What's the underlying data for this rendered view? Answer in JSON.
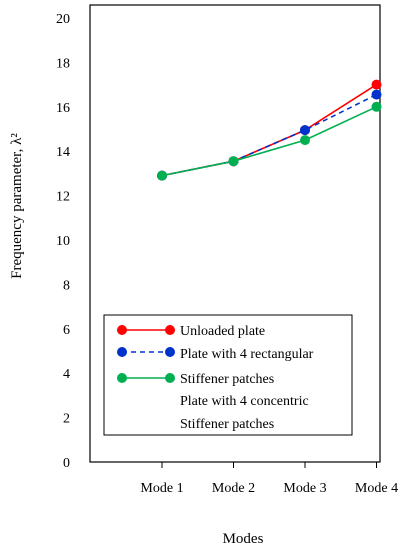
{
  "chart_data": {
    "type": "line",
    "title": "",
    "xlabel": "Modes",
    "ylabel": "Frequency parameter, λ²",
    "categories": [
      "Mode 1",
      "Mode 2",
      "Mode 3",
      "Mode 4"
    ],
    "y_ticks": [
      "0",
      "2",
      "4",
      "6",
      "8",
      "10",
      "12",
      "14",
      "16",
      "18",
      "20"
    ],
    "ylim": [
      0,
      20
    ],
    "grid": false,
    "legend_position": "bottom-left",
    "legend_lines": [
      "Unloaded plate",
      "Plate with 4 rectangular",
      "Stiffener patches",
      "Plate with 4 concentric",
      "Stiffener patches"
    ],
    "series": [
      {
        "name": "Unloaded plate",
        "color": "#ff0000",
        "line_style": "solid",
        "values": [
          12.9,
          13.55,
          14.95,
          17.0
        ]
      },
      {
        "name": "Plate with 4 rectangular Stiffener patches",
        "color": "#0033cc",
        "line_style": "dashed",
        "values": [
          12.9,
          13.55,
          14.95,
          16.55
        ]
      },
      {
        "name": "Plate with 4 concentric Stiffener patches",
        "color": "#00b050",
        "line_style": "solid",
        "values": [
          12.9,
          13.55,
          14.5,
          16.0
        ]
      }
    ]
  }
}
